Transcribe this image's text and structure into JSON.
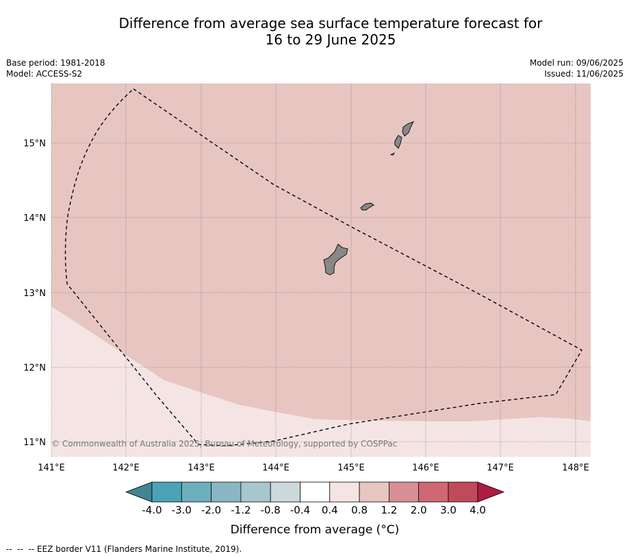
{
  "title_line1": "Difference from average sea surface temperature forecast for",
  "title_line2": "16 to 29 June 2025",
  "meta": {
    "base_period": "Base period: 1981-2018",
    "model": "Model: ACCESS-S2",
    "model_run": "Model run: 09/06/2025",
    "issued": "Issued: 11/06/2025"
  },
  "map": {
    "lat_labels": [
      "15°N",
      "14°N",
      "13°N",
      "12°N",
      "11°N"
    ],
    "lon_labels": [
      "141°E",
      "142°E",
      "143°E",
      "144°E",
      "145°E",
      "146°E",
      "147°E",
      "148°E"
    ],
    "copyright": "© Commonwealth of Australia 2025, Bureau of Meteorology, supported by COSPPac",
    "anomaly_main": "0.8 to 1.2",
    "anomaly_southwest": "0.4 to 0.8",
    "colors": {
      "anomaly_main": "#e7c6c2",
      "anomaly_southwest": "#f4e5e4",
      "land": "#888888",
      "grid": "#555555"
    }
  },
  "colorbar": {
    "label": "Difference from average (°C)",
    "ticks": [
      "-4.0",
      "-3.0",
      "-2.0",
      "-1.2",
      "-0.8",
      "-0.4",
      "0.4",
      "0.8",
      "1.2",
      "2.0",
      "3.0",
      "4.0"
    ],
    "colors": [
      "#3f8592",
      "#4aa4b6",
      "#6eafbe",
      "#8ab7c3",
      "#a7c7cc",
      "#cbd8dc",
      "#ffffff",
      "#f4e5e4",
      "#e7c6c2",
      "#d88f97",
      "#cf6873",
      "#c04a59",
      "#ae1d40"
    ]
  },
  "footnote": "--  --  -- EEZ border V11 (Flanders Marine Institute, 2019)."
}
